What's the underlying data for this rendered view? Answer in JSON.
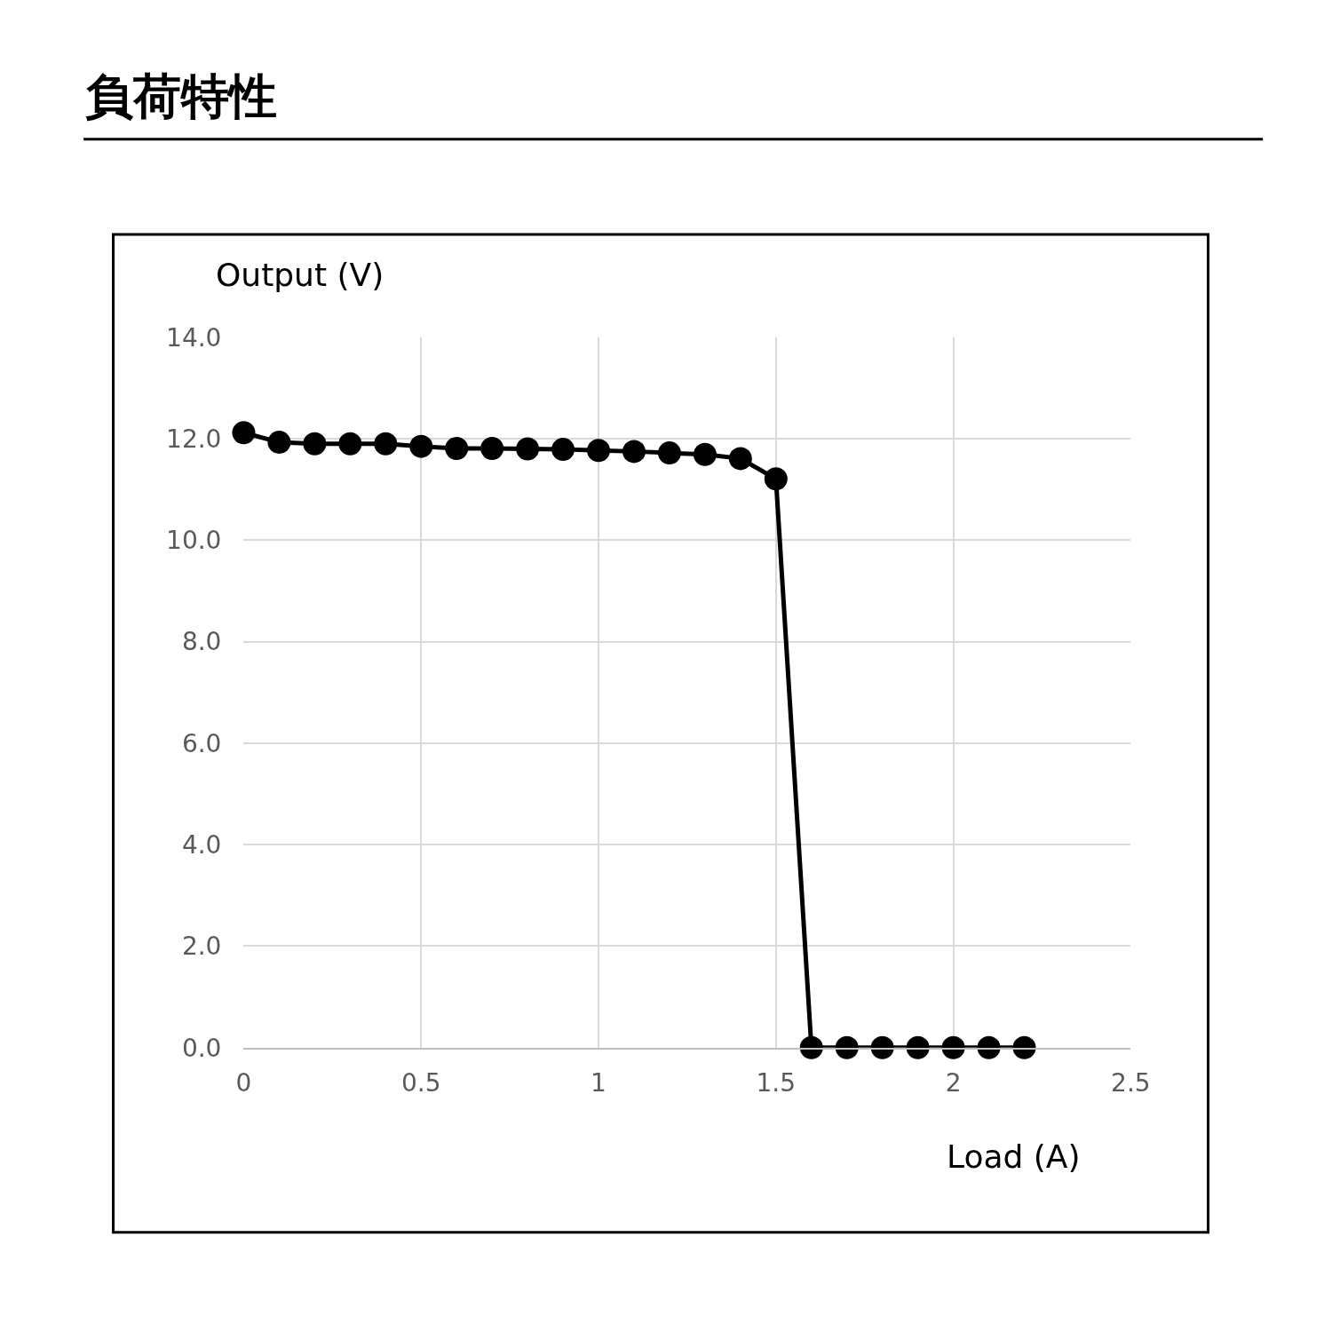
{
  "chart_data": {
    "type": "line",
    "title": "負荷特性",
    "xlabel": "Load (A)",
    "ylabel": "Output (V)",
    "x": [
      0,
      0.1,
      0.2,
      0.3,
      0.4,
      0.5,
      0.6,
      0.7,
      0.8,
      0.9,
      1.0,
      1.1,
      1.2,
      1.3,
      1.4,
      1.5,
      1.6,
      1.7,
      1.8,
      1.9,
      2.0,
      2.1,
      2.2
    ],
    "series": [
      {
        "color": "#000000",
        "values": [
          12.12,
          11.93,
          11.9,
          11.9,
          11.9,
          11.85,
          11.81,
          11.81,
          11.8,
          11.79,
          11.77,
          11.75,
          11.72,
          11.69,
          11.61,
          11.21,
          0,
          0,
          0,
          0,
          0,
          0,
          0
        ]
      }
    ],
    "xlim": [
      0,
      2.5
    ],
    "xticks": [
      0,
      0.5,
      1,
      1.5,
      2,
      2.5
    ],
    "ylim": [
      0,
      14
    ],
    "yticks": [
      {
        "value": 0,
        "label": "0.0"
      },
      {
        "value": 2,
        "label": "2.0"
      },
      {
        "value": 4,
        "label": "4.0"
      },
      {
        "value": 6,
        "label": "6.0"
      },
      {
        "value": 8,
        "label": "8.0"
      },
      {
        "value": 10,
        "label": "10.0"
      },
      {
        "value": 12,
        "label": "12.0"
      },
      {
        "value": 14,
        "label": "14.0"
      }
    ],
    "grid": true,
    "marker": "circle",
    "line_style": "solid"
  }
}
